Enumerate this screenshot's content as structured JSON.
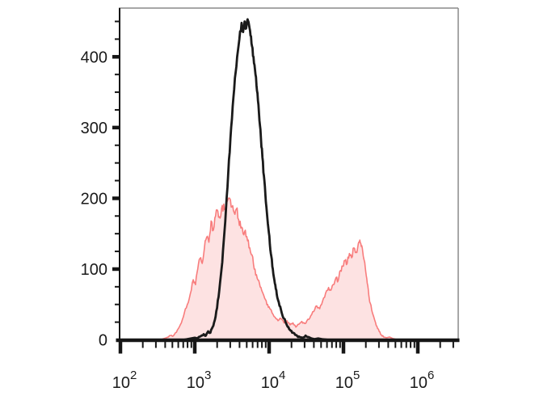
{
  "colors": {
    "background": "#ffffff",
    "axis": "#161616",
    "frame_border": "#8a8a8a",
    "tick_text": "#1a1a1a",
    "black_series": "#1a1a1a",
    "red_series_stroke": "#f87c7c",
    "red_series_fill": "rgba(248,124,124,0.22)"
  },
  "chart_data": {
    "type": "line",
    "subtype": "flow-cytometry-histogram-overlay",
    "title": "",
    "xlabel": "",
    "ylabel": "",
    "grid": false,
    "legend": "none",
    "x_axis": {
      "scale": "log10",
      "min": 100,
      "max": 3500000,
      "major_tick_base": "10",
      "major_tick_exponents": [
        "2",
        "3",
        "4",
        "5",
        "6"
      ],
      "major_tick_values": [
        100,
        1000,
        10000,
        100000,
        1000000
      ],
      "minor_tick_values": [
        200,
        300,
        400,
        500,
        600,
        700,
        800,
        900,
        2000,
        3000,
        4000,
        5000,
        6000,
        7000,
        8000,
        9000,
        20000,
        30000,
        40000,
        50000,
        60000,
        70000,
        80000,
        90000,
        200000,
        300000,
        400000,
        500000,
        600000,
        700000,
        800000,
        900000,
        2000000,
        3000000
      ]
    },
    "y_axis": {
      "scale": "linear",
      "min": 0,
      "max": 466,
      "major_tick_values": [
        0,
        100,
        200,
        300,
        400
      ],
      "major_tick_labels": [
        "0",
        "100",
        "200",
        "300",
        "400"
      ],
      "minor_tick_values": [
        25,
        50,
        75,
        125,
        150,
        175,
        225,
        250,
        275,
        325,
        350,
        375,
        425,
        450
      ]
    },
    "series": [
      {
        "name": "red-filled-histogram",
        "style": "filled",
        "stroke": "#f87c7c",
        "fill": "rgba(248,124,124,0.22)",
        "line_width": 1.6,
        "noise_amp": 7,
        "peaks": [
          {
            "x": 3000,
            "count": 200
          },
          {
            "x": 165000,
            "count": 141
          }
        ],
        "points_log10x_count": [
          [
            2.0,
            0
          ],
          [
            2.5,
            0
          ],
          [
            2.56,
            1
          ],
          [
            2.62,
            3
          ],
          [
            2.66,
            6
          ],
          [
            2.7,
            5
          ],
          [
            2.74,
            10
          ],
          [
            2.78,
            16
          ],
          [
            2.82,
            24
          ],
          [
            2.86,
            38
          ],
          [
            2.9,
            50
          ],
          [
            2.94,
            65
          ],
          [
            2.98,
            85
          ],
          [
            3.01,
            78
          ],
          [
            3.04,
            100
          ],
          [
            3.07,
            115
          ],
          [
            3.1,
            108
          ],
          [
            3.13,
            130
          ],
          [
            3.16,
            145
          ],
          [
            3.19,
            138
          ],
          [
            3.22,
            168
          ],
          [
            3.25,
            155
          ],
          [
            3.28,
            175
          ],
          [
            3.31,
            182
          ],
          [
            3.34,
            172
          ],
          [
            3.37,
            190
          ],
          [
            3.4,
            184
          ],
          [
            3.43,
            194
          ],
          [
            3.47,
            200
          ],
          [
            3.5,
            188
          ],
          [
            3.53,
            180
          ],
          [
            3.56,
            185
          ],
          [
            3.59,
            170
          ],
          [
            3.62,
            158
          ],
          [
            3.65,
            150
          ],
          [
            3.68,
            155
          ],
          [
            3.71,
            140
          ],
          [
            3.74,
            130
          ],
          [
            3.77,
            120
          ],
          [
            3.8,
            100
          ],
          [
            3.83,
            92
          ],
          [
            3.86,
            84
          ],
          [
            3.89,
            74
          ],
          [
            3.92,
            65
          ],
          [
            3.95,
            57
          ],
          [
            3.98,
            50
          ],
          [
            4.01,
            44
          ],
          [
            4.04,
            38
          ],
          [
            4.08,
            32
          ],
          [
            4.12,
            27
          ],
          [
            4.16,
            30
          ],
          [
            4.2,
            24
          ],
          [
            4.24,
            27
          ],
          [
            4.28,
            21
          ],
          [
            4.32,
            24
          ],
          [
            4.36,
            18
          ],
          [
            4.4,
            22
          ],
          [
            4.44,
            26
          ],
          [
            4.48,
            23
          ],
          [
            4.52,
            29
          ],
          [
            4.56,
            34
          ],
          [
            4.6,
            40
          ],
          [
            4.64,
            48
          ],
          [
            4.68,
            44
          ],
          [
            4.72,
            55
          ],
          [
            4.76,
            66
          ],
          [
            4.8,
            74
          ],
          [
            4.83,
            70
          ],
          [
            4.86,
            78
          ],
          [
            4.9,
            88
          ],
          [
            4.93,
            84
          ],
          [
            4.96,
            98
          ],
          [
            4.99,
            104
          ],
          [
            5.02,
            112
          ],
          [
            5.05,
            108
          ],
          [
            5.08,
            122
          ],
          [
            5.11,
            116
          ],
          [
            5.14,
            130
          ],
          [
            5.17,
            124
          ],
          [
            5.2,
            136
          ],
          [
            5.22,
            141
          ],
          [
            5.24,
            132
          ],
          [
            5.26,
            124
          ],
          [
            5.28,
            112
          ],
          [
            5.3,
            96
          ],
          [
            5.32,
            80
          ],
          [
            5.34,
            64
          ],
          [
            5.36,
            52
          ],
          [
            5.39,
            38
          ],
          [
            5.42,
            28
          ],
          [
            5.45,
            19
          ],
          [
            5.48,
            12
          ],
          [
            5.51,
            7
          ],
          [
            5.54,
            4
          ],
          [
            5.58,
            3
          ],
          [
            5.62,
            4
          ],
          [
            5.66,
            2
          ],
          [
            5.7,
            1
          ],
          [
            5.76,
            0
          ],
          [
            6.5,
            0
          ]
        ]
      },
      {
        "name": "black-open-histogram",
        "style": "open",
        "stroke": "#1a1a1a",
        "fill": "none",
        "line_width": 2.8,
        "noise_amp": 4.5,
        "peaks": [
          {
            "x": 5000,
            "count": 453
          }
        ],
        "points_log10x_count": [
          [
            2.0,
            0
          ],
          [
            2.85,
            0
          ],
          [
            2.9,
            1
          ],
          [
            2.95,
            2
          ],
          [
            3.0,
            3
          ],
          [
            3.04,
            2
          ],
          [
            3.08,
            5
          ],
          [
            3.12,
            8
          ],
          [
            3.15,
            6
          ],
          [
            3.18,
            12
          ],
          [
            3.21,
            10
          ],
          [
            3.24,
            18
          ],
          [
            3.27,
            28
          ],
          [
            3.3,
            45
          ],
          [
            3.33,
            70
          ],
          [
            3.36,
            100
          ],
          [
            3.39,
            140
          ],
          [
            3.42,
            185
          ],
          [
            3.45,
            235
          ],
          [
            3.48,
            285
          ],
          [
            3.51,
            330
          ],
          [
            3.54,
            370
          ],
          [
            3.57,
            400
          ],
          [
            3.6,
            425
          ],
          [
            3.63,
            448
          ],
          [
            3.65,
            435
          ],
          [
            3.67,
            450
          ],
          [
            3.69,
            440
          ],
          [
            3.71,
            453
          ],
          [
            3.73,
            445
          ],
          [
            3.75,
            430
          ],
          [
            3.77,
            415
          ],
          [
            3.79,
            400
          ],
          [
            3.81,
            382
          ],
          [
            3.83,
            360
          ],
          [
            3.85,
            338
          ],
          [
            3.87,
            310
          ],
          [
            3.89,
            285
          ],
          [
            3.91,
            258
          ],
          [
            3.93,
            232
          ],
          [
            3.95,
            205
          ],
          [
            3.97,
            180
          ],
          [
            3.99,
            158
          ],
          [
            4.01,
            135
          ],
          [
            4.03,
            118
          ],
          [
            4.05,
            100
          ],
          [
            4.07,
            85
          ],
          [
            4.09,
            72
          ],
          [
            4.11,
            60
          ],
          [
            4.14,
            48
          ],
          [
            4.17,
            38
          ],
          [
            4.2,
            30
          ],
          [
            4.23,
            23
          ],
          [
            4.26,
            18
          ],
          [
            4.29,
            13
          ],
          [
            4.32,
            10
          ],
          [
            4.35,
            7
          ],
          [
            4.38,
            5
          ],
          [
            4.41,
            4
          ],
          [
            4.45,
            3
          ],
          [
            4.49,
            6
          ],
          [
            4.53,
            4
          ],
          [
            4.57,
            2
          ],
          [
            4.61,
            1
          ],
          [
            4.66,
            2
          ],
          [
            4.71,
            1
          ],
          [
            4.8,
            0
          ],
          [
            6.5,
            0
          ]
        ]
      }
    ]
  }
}
